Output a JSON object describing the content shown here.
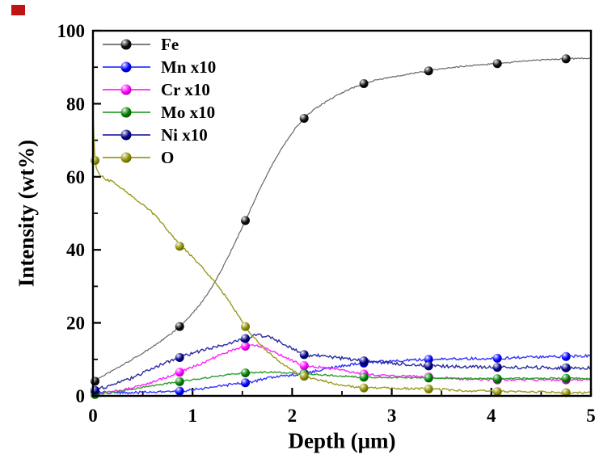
{
  "figure": {
    "background": "#ffffff",
    "corner_marker_color": "#bf1414"
  },
  "chart_data": {
    "type": "line",
    "title": "",
    "xlabel": "Depth (μm)",
    "ylabel": "Intensity (wt%)",
    "xlim": [
      0,
      5
    ],
    "ylim": [
      0,
      100
    ],
    "x_major_ticks": [
      0,
      1,
      2,
      3,
      4,
      5
    ],
    "x_minor_ticks": [
      0.5,
      1.5,
      2.5,
      3.5,
      4.5
    ],
    "y_major_ticks": [
      0,
      20,
      40,
      60,
      80,
      100
    ],
    "y_minor_ticks": [
      10,
      30,
      50,
      70,
      90
    ],
    "grid": false,
    "legend_position": "top-left-inside",
    "marker_style": "3d-sphere",
    "series": [
      {
        "name": "Fe",
        "legend_label": "Fe",
        "line_color": "#6b6b6b",
        "marker_color": "#0a0a0a",
        "noise": 0.18,
        "curve": [
          [
            0,
            4
          ],
          [
            0.3,
            8.5
          ],
          [
            0.6,
            13.5
          ],
          [
            0.87,
            19
          ],
          [
            1.1,
            26
          ],
          [
            1.3,
            35
          ],
          [
            1.53,
            48
          ],
          [
            1.7,
            58
          ],
          [
            1.9,
            68
          ],
          [
            2.12,
            76
          ],
          [
            2.4,
            81.5
          ],
          [
            2.72,
            85.5
          ],
          [
            3.0,
            87.3
          ],
          [
            3.37,
            89
          ],
          [
            3.7,
            90.2
          ],
          [
            4.06,
            91
          ],
          [
            4.4,
            91.8
          ],
          [
            4.75,
            92.3
          ],
          [
            5,
            92.5
          ]
        ],
        "markers": [
          [
            0.02,
            4
          ],
          [
            0.87,
            19
          ],
          [
            1.53,
            48
          ],
          [
            2.12,
            76
          ],
          [
            2.72,
            85.5
          ],
          [
            3.37,
            89
          ],
          [
            4.06,
            91
          ],
          [
            4.75,
            92.3
          ]
        ]
      },
      {
        "name": "Mn",
        "legend_label": "Mn x10",
        "line_color": "#3333ff",
        "marker_color": "#0000ff",
        "noise": 0.35,
        "curve": [
          [
            0,
            1
          ],
          [
            0.3,
            0.9
          ],
          [
            0.6,
            1
          ],
          [
            0.87,
            1.3
          ],
          [
            1.1,
            2
          ],
          [
            1.3,
            2.8
          ],
          [
            1.53,
            3.6
          ],
          [
            1.8,
            5
          ],
          [
            2.12,
            6.2
          ],
          [
            2.4,
            7.7
          ],
          [
            2.72,
            9
          ],
          [
            3.0,
            9.6
          ],
          [
            3.37,
            10
          ],
          [
            3.7,
            10.2
          ],
          [
            4.06,
            10.3
          ],
          [
            4.4,
            10.6
          ],
          [
            4.75,
            10.8
          ],
          [
            5,
            11
          ]
        ],
        "markers": [
          [
            0.02,
            1
          ],
          [
            0.87,
            1.3
          ],
          [
            1.53,
            3.6
          ],
          [
            2.12,
            6.2
          ],
          [
            2.72,
            9
          ],
          [
            3.37,
            10
          ],
          [
            4.06,
            10.3
          ],
          [
            4.75,
            10.8
          ]
        ]
      },
      {
        "name": "Cr",
        "legend_label": "Cr x10",
        "line_color": "#ff22ff",
        "marker_color": "#ff00ff",
        "noise": 0.3,
        "curve": [
          [
            0,
            0.5
          ],
          [
            0.2,
            1.2
          ],
          [
            0.4,
            2.2
          ],
          [
            0.6,
            3.8
          ],
          [
            0.87,
            6.5
          ],
          [
            1.1,
            9
          ],
          [
            1.3,
            11.5
          ],
          [
            1.45,
            13
          ],
          [
            1.6,
            14
          ],
          [
            1.75,
            12.8
          ],
          [
            1.9,
            11
          ],
          [
            2.0,
            9.7
          ],
          [
            2.12,
            8.3
          ],
          [
            2.3,
            7.8
          ],
          [
            2.5,
            7
          ],
          [
            2.72,
            6
          ],
          [
            3.0,
            5.5
          ],
          [
            3.37,
            5.2
          ],
          [
            3.7,
            4.6
          ],
          [
            4.06,
            4.4
          ],
          [
            4.4,
            4.4
          ],
          [
            4.75,
            4.4
          ],
          [
            5,
            4.4
          ]
        ],
        "markers": [
          [
            0.02,
            0.5
          ],
          [
            0.87,
            6.5
          ],
          [
            1.53,
            13.6
          ],
          [
            2.12,
            8.3
          ],
          [
            2.72,
            6
          ],
          [
            3.37,
            5.2
          ],
          [
            4.06,
            4.4
          ],
          [
            4.75,
            4.4
          ]
        ]
      },
      {
        "name": "Mo",
        "legend_label": "Mo x10",
        "line_color": "#2e9e2e",
        "marker_color": "#008000",
        "noise": 0.22,
        "curve": [
          [
            0,
            0.4
          ],
          [
            0.2,
            1
          ],
          [
            0.4,
            1.9
          ],
          [
            0.6,
            2.8
          ],
          [
            0.87,
            3.9
          ],
          [
            1.1,
            4.8
          ],
          [
            1.3,
            5.6
          ],
          [
            1.53,
            6.3
          ],
          [
            1.8,
            6.5
          ],
          [
            2.12,
            6
          ],
          [
            2.4,
            5.6
          ],
          [
            2.72,
            5.1
          ],
          [
            3.0,
            5
          ],
          [
            3.37,
            4.9
          ],
          [
            3.7,
            4.8
          ],
          [
            4.06,
            4.7
          ],
          [
            4.4,
            4.8
          ],
          [
            4.75,
            4.8
          ],
          [
            5,
            4.8
          ]
        ],
        "markers": [
          [
            0.02,
            0.4
          ],
          [
            0.87,
            3.9
          ],
          [
            1.53,
            6.3
          ],
          [
            2.12,
            6
          ],
          [
            2.72,
            5.1
          ],
          [
            3.37,
            4.9
          ],
          [
            4.06,
            4.7
          ],
          [
            4.75,
            4.8
          ]
        ]
      },
      {
        "name": "Ni",
        "legend_label": "Ni x10",
        "line_color": "#2a2aa0",
        "marker_color": "#000085",
        "noise": 0.45,
        "curve": [
          [
            0,
            1.5
          ],
          [
            0.2,
            3
          ],
          [
            0.4,
            5
          ],
          [
            0.6,
            7.5
          ],
          [
            0.87,
            10.5
          ],
          [
            1.1,
            12.5
          ],
          [
            1.3,
            14
          ],
          [
            1.53,
            15.7
          ],
          [
            1.65,
            16.6
          ],
          [
            1.8,
            15.8
          ],
          [
            2.0,
            13
          ],
          [
            2.12,
            11.3
          ],
          [
            2.3,
            11
          ],
          [
            2.5,
            10.3
          ],
          [
            2.72,
            9.6
          ],
          [
            3.0,
            9
          ],
          [
            3.37,
            8.2
          ],
          [
            3.7,
            8
          ],
          [
            4.06,
            7.8
          ],
          [
            4.4,
            7.8
          ],
          [
            4.75,
            7.7
          ],
          [
            5,
            7.7
          ]
        ],
        "markers": [
          [
            0.02,
            1.5
          ],
          [
            0.87,
            10.5
          ],
          [
            1.53,
            15.7
          ],
          [
            2.12,
            11.3
          ],
          [
            2.72,
            9.6
          ],
          [
            3.37,
            8.2
          ],
          [
            4.06,
            7.8
          ],
          [
            4.75,
            7.7
          ]
        ]
      },
      {
        "name": "O",
        "legend_label": "O",
        "line_color": "#9a9a20",
        "marker_color": "#8f8f00",
        "noise": 0.3,
        "curve": [
          [
            0,
            78
          ],
          [
            0.02,
            64.5
          ],
          [
            0.1,
            60
          ],
          [
            0.2,
            58.5
          ],
          [
            0.3,
            56.5
          ],
          [
            0.45,
            53.5
          ],
          [
            0.6,
            50
          ],
          [
            0.7,
            47
          ],
          [
            0.87,
            41.5
          ],
          [
            1.0,
            38
          ],
          [
            1.15,
            33.5
          ],
          [
            1.3,
            28.5
          ],
          [
            1.45,
            22.5
          ],
          [
            1.53,
            19
          ],
          [
            1.65,
            15
          ],
          [
            1.8,
            11
          ],
          [
            2.0,
            7
          ],
          [
            2.12,
            5.4
          ],
          [
            2.3,
            4.2
          ],
          [
            2.5,
            3
          ],
          [
            2.72,
            2.2
          ],
          [
            3.0,
            2.1
          ],
          [
            3.37,
            1.9
          ],
          [
            3.7,
            1.5
          ],
          [
            4.06,
            1.2
          ],
          [
            4.4,
            1.1
          ],
          [
            4.75,
            0.9
          ],
          [
            5,
            0.8
          ]
        ],
        "markers": [
          [
            0.02,
            64.5
          ],
          [
            0.87,
            41
          ],
          [
            1.53,
            19
          ],
          [
            2.12,
            5.4
          ],
          [
            2.72,
            2.2
          ],
          [
            3.37,
            1.9
          ],
          [
            4.06,
            1.2
          ],
          [
            4.75,
            0.9
          ]
        ]
      }
    ]
  }
}
